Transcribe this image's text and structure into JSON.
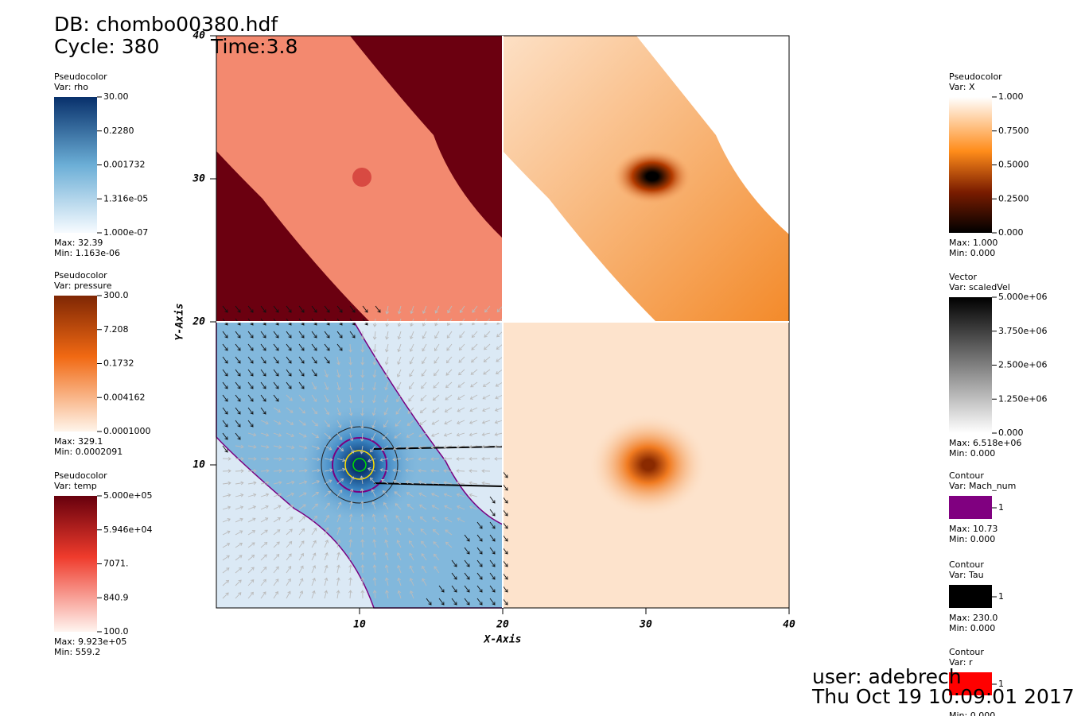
{
  "header": {
    "db": "DB: chombo00380.hdf",
    "cycle": "Cycle: 380",
    "time": "Time:3.8"
  },
  "axes": {
    "x_label": "X-Axis",
    "y_label": "Y-Axis",
    "xlim": [
      0,
      40
    ],
    "ylim": [
      0,
      40
    ],
    "xticks": [
      10,
      20,
      30,
      40
    ],
    "yticks": [
      10,
      20,
      30,
      40
    ]
  },
  "left_legends": [
    {
      "title": "Pseudocolor",
      "var": "Var: rho",
      "labels": [
        "30.00",
        "0.2280",
        "0.001732",
        "1.316e-05",
        "1.000e-07"
      ],
      "max": "Max:  32.39",
      "min": "Min:  1.163e-06"
    },
    {
      "title": "Pseudocolor",
      "var": "Var: pressure",
      "labels": [
        "300.0",
        "7.208",
        "0.1732",
        "0.004162",
        "0.0001000"
      ],
      "max": "Max:  329.1",
      "min": "Min:  0.0002091"
    },
    {
      "title": "Pseudocolor",
      "var": "Var: temp",
      "labels": [
        "5.000e+05",
        "5.946e+04",
        "7071.",
        "840.9",
        "100.0"
      ],
      "max": "Max:  9.923e+05",
      "min": "Min:  559.2"
    }
  ],
  "right_legends": [
    {
      "title": "Pseudocolor",
      "var": "Var: X",
      "labels": [
        "1.000",
        "0.7500",
        "0.5000",
        "0.2500",
        "0.000"
      ],
      "max": "Max:  1.000",
      "min": "Min:  0.000"
    },
    {
      "title": "Vector",
      "var": "Var: scaledVel",
      "labels": [
        "5.000e+06",
        "3.750e+06",
        "2.500e+06",
        "1.250e+06",
        "0.000"
      ],
      "max": "Max:  6.518e+06",
      "min": "Min:  0.000"
    },
    {
      "title": "Contour",
      "var": "Var: Mach_num",
      "labels": [
        "1"
      ],
      "max": "Max:  10.73",
      "min": "Min:  0.000"
    },
    {
      "title": "Contour",
      "var": "Var: Tau",
      "labels": [
        "1"
      ],
      "max": "Max:  230.0",
      "min": "Min:  0.000"
    },
    {
      "title": "Contour",
      "var": "Var: r",
      "labels": [
        "1"
      ],
      "min": "Min:  0.000"
    }
  ],
  "footer": {
    "user": "user: adebrech",
    "date": "Thu Oct 19 10:09:01 2017"
  }
}
